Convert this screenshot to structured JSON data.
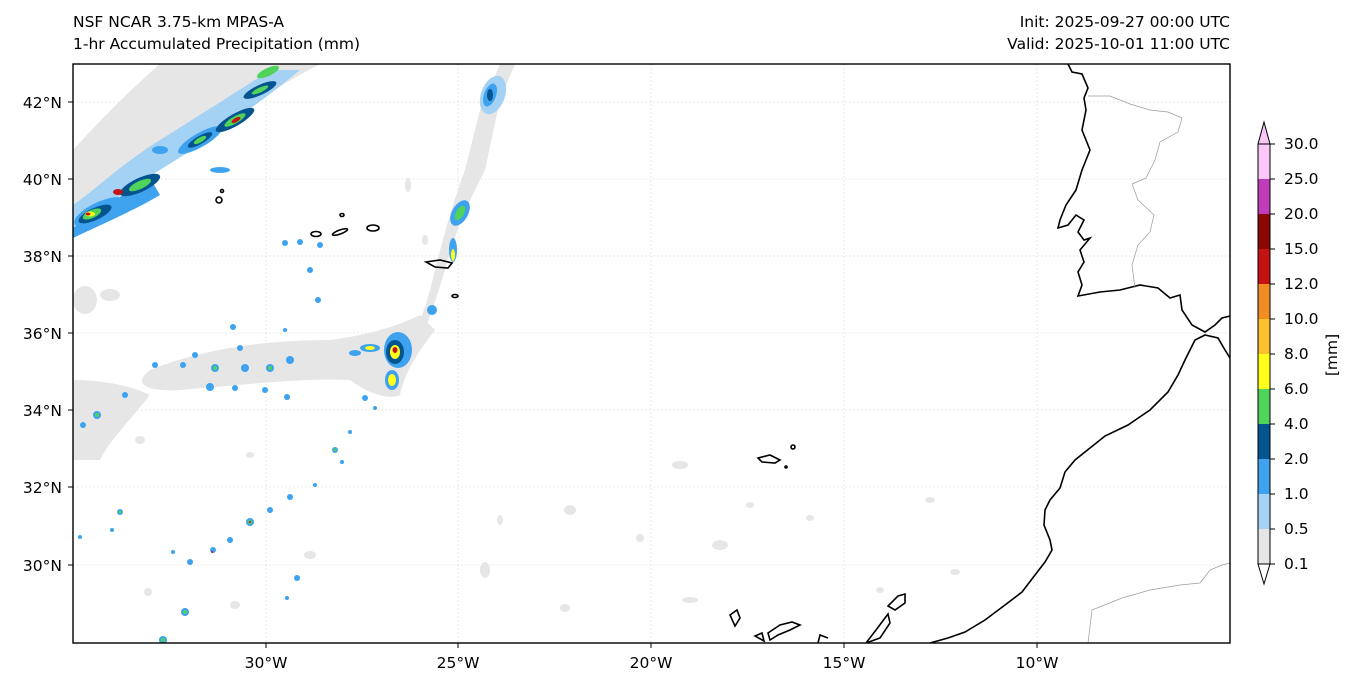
{
  "header": {
    "model": "NSF NCAR 3.75-km MPAS-A",
    "field": "1-hr Accumulated Precipitation (mm)",
    "init": "Init: 2025-09-27 00:00 UTC",
    "valid": "Valid: 2025-10-01 11:00 UTC"
  },
  "axes": {
    "lat_labels": [
      "42°N",
      "40°N",
      "38°N",
      "36°N",
      "34°N",
      "32°N",
      "30°N"
    ],
    "lon_labels": [
      "30°W",
      "25°W",
      "20°W",
      "15°W",
      "10°W"
    ]
  },
  "colorbar": {
    "unit": "[mm]",
    "ticks": [
      "0.1",
      "0.5",
      "1.0",
      "2.0",
      "4.0",
      "6.0",
      "8.0",
      "10.0",
      "12.0",
      "15.0",
      "20.0",
      "25.0",
      "30.0"
    ],
    "colors": [
      "#e6e6e6",
      "#a4d2f5",
      "#3ea2ee",
      "#04548f",
      "#4fd35a",
      "#ffff1a",
      "#fbc02f",
      "#f08e24",
      "#c41313",
      "#8a0808",
      "#c03cb8",
      "#fbc6f8"
    ]
  }
}
